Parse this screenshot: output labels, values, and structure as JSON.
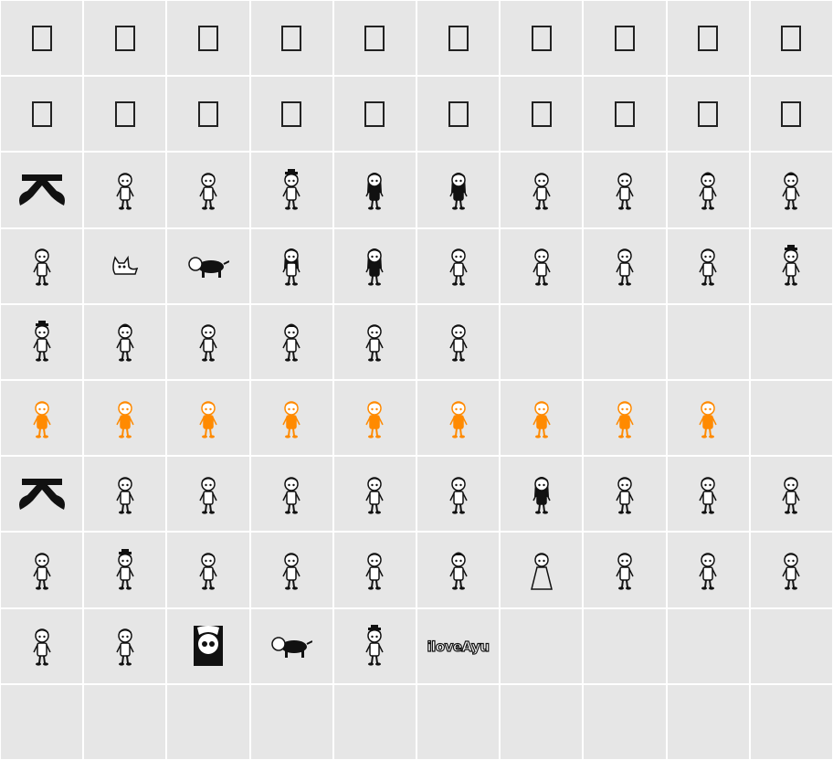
{
  "colors": {
    "background": "#e6e6e6",
    "grid_line": "#ffffff",
    "glyph_black": "#111111",
    "glyph_orange": "#ff8a00",
    "missing_glyph": "#222222"
  },
  "rows": [
    [
      "missing-glyph",
      "missing-glyph",
      "missing-glyph",
      "missing-glyph",
      "missing-glyph",
      "missing-glyph",
      "missing-glyph",
      "missing-glyph",
      "missing-glyph",
      "missing-glyph"
    ],
    [
      "missing-glyph",
      "missing-glyph",
      "missing-glyph",
      "missing-glyph",
      "missing-glyph",
      "missing-glyph",
      "missing-glyph",
      "missing-glyph",
      "missing-glyph",
      "missing-glyph"
    ],
    [
      "a-logo",
      "figure",
      "figure",
      "figure-hat",
      "figure-dark",
      "figure-dark",
      "figure",
      "figure",
      "figure-cap",
      "figure-cap"
    ],
    [
      "figure",
      "cat",
      "dog",
      "figure-long-hair",
      "figure-dark",
      "figure",
      "figure",
      "figure",
      "figure",
      "figure-hat"
    ],
    [
      "figure-hat",
      "figure-cap",
      "figure",
      "figure-cap",
      "figure",
      "figure",
      "empty",
      "empty",
      "empty",
      "empty"
    ],
    [
      "figure-orange",
      "figure-orange",
      "figure-orange",
      "figure-orange",
      "figure-orange",
      "figure-orange",
      "figure-orange",
      "figure-orange",
      "figure-orange",
      "empty"
    ],
    [
      "a-logo",
      "figure",
      "figure",
      "figure",
      "figure",
      "figure",
      "figure-dark",
      "figure",
      "figure",
      "figure"
    ],
    [
      "figure",
      "figure-hat",
      "figure",
      "figure",
      "figure",
      "figure-cap",
      "figure-dress",
      "figure",
      "figure",
      "figure"
    ],
    [
      "figure",
      "figure",
      "portrait",
      "dog",
      "figure-hat",
      "text-logo",
      "empty",
      "empty",
      "empty",
      "empty"
    ],
    [
      "empty",
      "empty",
      "empty",
      "empty",
      "empty",
      "empty",
      "empty",
      "empty",
      "empty",
      "empty"
    ]
  ],
  "text_logo": "iloveAyu"
}
